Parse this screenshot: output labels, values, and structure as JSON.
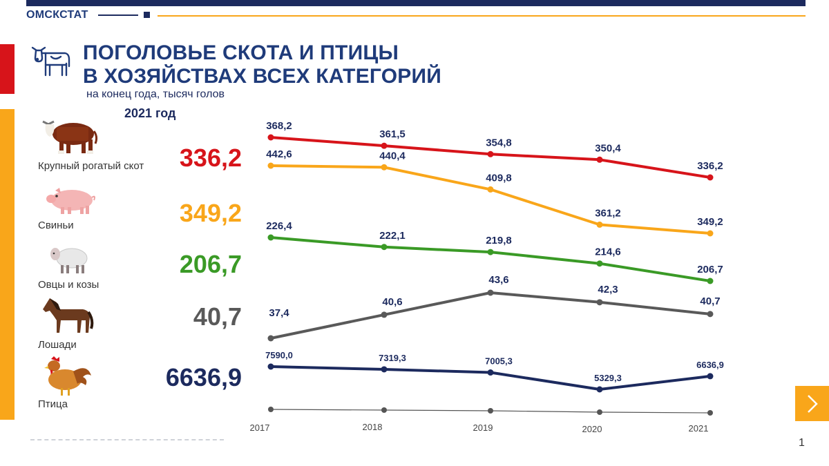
{
  "header": {
    "brand": "ОМСКСТАТ",
    "title_line1": "ПОГОЛОВЬЕ СКОТА И ПТИЦЫ",
    "title_line2": "В ХОЗЯЙСТВАХ ВСЕХ КАТЕГОРИЙ",
    "subtitle": "на конец года, тысяч голов",
    "year_label": "2021 год"
  },
  "colors": {
    "navy": "#1c2a5e",
    "accent_red": "#d7141a",
    "accent_orange": "#f9a61a",
    "green": "#3a9a26",
    "gray": "#595959",
    "title": "#1f3b7a"
  },
  "categories": [
    {
      "label": "Крупный рогатый скот",
      "value": "336,2",
      "icon": "cow-icon",
      "color": "#d7141a"
    },
    {
      "label": "Свиньи",
      "value": "349,2",
      "icon": "pig-icon",
      "color": "#f9a61a"
    },
    {
      "label": "Овцы и козы",
      "value": "206,7",
      "icon": "sheep-icon",
      "color": "#3a9a26"
    },
    {
      "label": "Лошади",
      "value": "40,7",
      "icon": "horse-icon",
      "color": "#595959"
    },
    {
      "label": "Птица",
      "value": "6636,9",
      "icon": "rooster-icon",
      "color": "#1c2a5e"
    }
  ],
  "chart_data": {
    "type": "line",
    "title": "ПОГОЛОВЬЕ СКОТА И ПТИЦЫ В ХОЗЯЙСТВАХ ВСЕХ КАТЕГОРИЙ",
    "subtitle": "на конец года, тысяч голов",
    "x": [
      "2017",
      "2018",
      "2019",
      "2020",
      "2021"
    ],
    "xlabel": "",
    "ylabel": "",
    "note": "each series is drawn on its own independent vertical scale",
    "series": [
      {
        "name": "Крупный рогатый скот",
        "color": "#d7141a",
        "values": [
          368.2,
          361.5,
          354.8,
          350.4,
          336.2
        ],
        "labels": [
          "368,2",
          "361,5",
          "354,8",
          "350,4",
          "336,2"
        ]
      },
      {
        "name": "Свиньи",
        "color": "#f9a61a",
        "values": [
          442.6,
          440.4,
          409.8,
          361.2,
          349.2
        ],
        "labels": [
          "442,6",
          "440,4",
          "409,8",
          "361,2",
          "349,2"
        ]
      },
      {
        "name": "Овцы и козы",
        "color": "#3a9a26",
        "values": [
          226.4,
          222.1,
          219.8,
          214.6,
          206.7
        ],
        "labels": [
          "226,4",
          "222,1",
          "219,8",
          "214,6",
          "206,7"
        ]
      },
      {
        "name": "Лошади",
        "color": "#595959",
        "values": [
          37.4,
          40.6,
          43.6,
          42.3,
          40.7
        ],
        "labels": [
          "37,4",
          "40,6",
          "43,6",
          "42,3",
          "40,7"
        ]
      },
      {
        "name": "Птица",
        "color": "#1c2a5e",
        "values": [
          7590.0,
          7319.3,
          7005.3,
          5329.3,
          6636.9
        ],
        "labels": [
          "7590,0",
          "7319,3",
          "7005,3",
          "5329,3",
          "6636,9"
        ]
      }
    ]
  },
  "nav": {
    "next_icon": "chevron-right-icon"
  },
  "footer": {
    "page_number": "1"
  }
}
